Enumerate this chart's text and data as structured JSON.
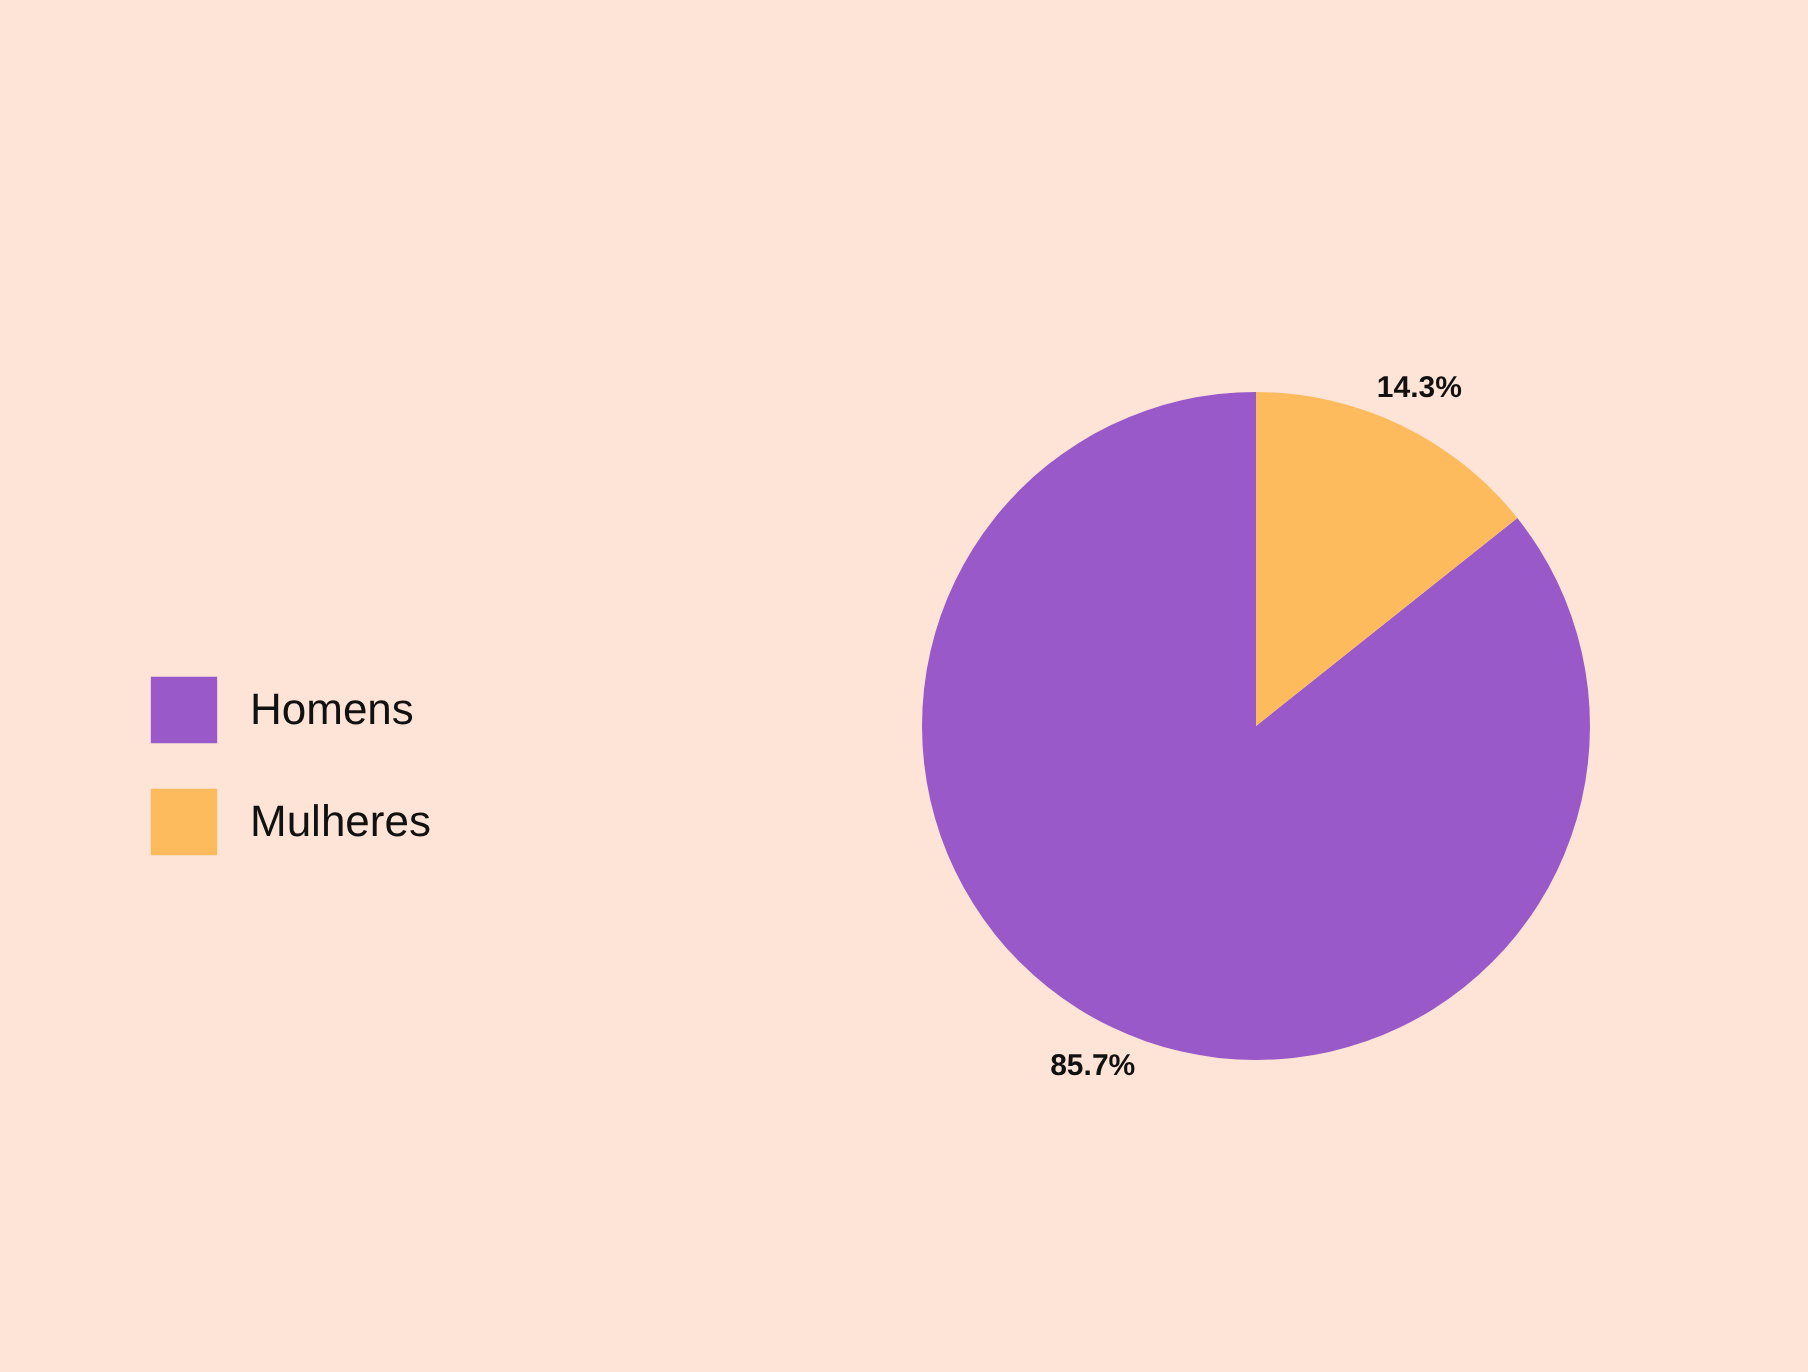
{
  "chart_data": {
    "type": "pie",
    "categories": [
      "Homens",
      "Mulheres"
    ],
    "values": [
      85.7,
      14.3
    ],
    "colors": [
      "#9a59c8",
      "#fdbb5e"
    ],
    "value_labels": [
      "85.7%",
      "14.3%"
    ],
    "legend": "left"
  }
}
